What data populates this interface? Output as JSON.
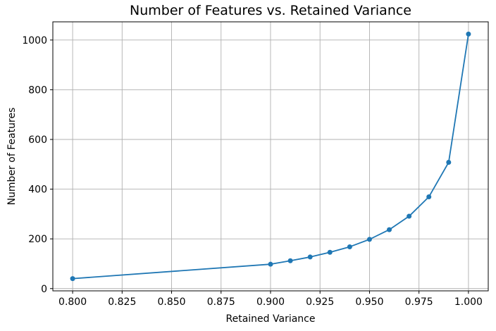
{
  "chart_data": {
    "type": "line",
    "title": "Number of Features vs. Retained Variance",
    "xlabel": "Retained Variance",
    "ylabel": "Number of Features",
    "x": [
      0.8,
      0.9,
      0.91,
      0.92,
      0.93,
      0.94,
      0.95,
      0.96,
      0.97,
      0.98,
      0.99,
      1.0
    ],
    "y": [
      40,
      98,
      112,
      127,
      146,
      168,
      198,
      237,
      291,
      369,
      508,
      1024
    ],
    "xlim": [
      0.79,
      1.01
    ],
    "ylim": [
      -9.2,
      1073.2
    ],
    "x_ticks": {
      "values": [
        0.8,
        0.825,
        0.85,
        0.875,
        0.9,
        0.925,
        0.95,
        0.975,
        1.0
      ],
      "labels": [
        "0.800",
        "0.825",
        "0.850",
        "0.875",
        "0.900",
        "0.925",
        "0.950",
        "0.975",
        "1.000"
      ]
    },
    "y_ticks": {
      "values": [
        0,
        200,
        400,
        600,
        800,
        1000
      ],
      "labels": [
        "0",
        "200",
        "400",
        "600",
        "800",
        "1000"
      ]
    },
    "grid": true,
    "legend": null,
    "line_color": "#1f77b4",
    "marker_color": "#1f77b4",
    "marker": "o",
    "grid_color": "#b0b0b0",
    "spine_color": "#000000",
    "background_color": "#ffffff",
    "text_color": "#000000"
  }
}
